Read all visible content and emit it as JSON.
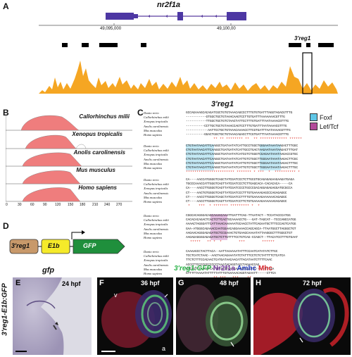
{
  "panels": {
    "A": "A",
    "B": "B",
    "C": "C",
    "D": "D",
    "E": "E",
    "F": "F",
    "G": "G",
    "H": "H"
  },
  "panelA": {
    "gene": "nr2f1a",
    "coord_left": "49,095,000",
    "coord_right": "49,100,00",
    "element_label": "3'reg1"
  },
  "panelB": {
    "species": [
      "Callorhinchus milii",
      "Xenopus tropicalis",
      "Anolis carolinensis",
      "Mus musculus",
      "Homo sapiens"
    ],
    "axis_ticks": [
      "0",
      "30",
      "60",
      "90",
      "120",
      "150",
      "180",
      "210",
      "240",
      "270"
    ]
  },
  "panelC": {
    "title": "3'reg1",
    "legend": [
      {
        "label": "Foxf",
        "color": "#5fc6e6"
      },
      {
        "label": "Lef/Tcf",
        "color": "#b24a9a"
      }
    ],
    "species": [
      "Danio rerio",
      "Callorhinchus milii",
      "Xenopus tropicalis",
      "Anolis carolinensis",
      "Mus musculus",
      "Homo sapiens"
    ],
    "blocks": [
      {
        "rows": [
          "GCCAGAAAGCACAGATCGCTGTGTAAACAGCCCTTTGTGTGATTTAGGTAGACGTTTG",
          "-----------GTGGCTGCTGTAAACAAGTCCTTGTGATTTAAAAAAACGTTTG",
          "-----------TTGGCTGCTGTCTAACTATTCCTTTGTGATTTAATAAAACGTTTG",
          "----------CCTTGCTGCTGTAAACCAGTCCTTTGTGATTTAATAAAACGTTTG",
          "------------AATTCCTGCTGTAAACAAAACCTTCGTGATTTAATAAAACGTTTG",
          "----------GGACTGGCTGCTGTAAACAGACCTTCGTGATTTAATAAAACGTTTG"
        ],
        "stars": "             ** ** ******** **  ** ************* ******"
      },
      {
        "rows": [
          "CTGTAATAACATTCAAGGCTGATAATATCATTGCCTGGCTGGGAATAAATAAGACTTTGGC",
          "CTGTAATAACATTCAAGGCTGATGATATCATTGCCTGACTAAGAATAAATAAGACTTTGAT",
          "CTGTAATAACATTCAAGGCTGATAATATCATCGTCTGGGTCGAGAATAAATAAGACCGTGC",
          "CTGTAATAACATTCAAGGCTGATAATATCATTGTCTGGCTTGGGAATAAATAAGACTTCGC",
          "CTGTAATAACATTCAAGGCTGATAATATCATTGTCTGGCTTGGGAATAAATAAGACTTTGC",
          "CTGTAATAACATTCAAGGCTGATAATATCATTGTCTGGCTTGGGAATAAATAAGACTTTGC"
        ],
        "stars": "*********************** ******* * ***  *  ********** *"
      },
      {
        "rows": [
          "CA----AACCATGGGGTCAGCTATCGATCCCTCTTGCGTGCAGAGAGAAGAAGATGAGA",
          "TGCCCAAACCATTGGGTCAGTTATCGATCCCTCTTGAGCACA-CACACACA-----CA",
          "CA----AACCTTGGGGTCAGTTATCGATCCCCTGCCCGACAGGAGAGAGGATGCGCCA",
          "CT----AACTGTGGGGTCAGTTATCGATCCCTTTGTGAAAAGAGCCCAGAGAGGC",
          "CT----AACCTTGGGGTCAGCTATCGATCCTTTTGTGAAAAGAAAAAACAGAGGC",
          "CT----AACCTTGGGGTCAGTTATCGATCCTTCTGTGAAAAGAAAAAAGAGAGGC"
        ],
        "stars": " *    ***  * ******* ********* *  * "
      },
      {
        "rows": [
          "CGGCACAGGGACAGCAAAACAAATTGATTTCAG-TTAATACT--TCCATACCCATGG",
          "CACACACAGACTCACTCTTCACTGCAAAACCTG---GAT-TAGCAT--TCCCANCCATGG",
          "AAAACTAGGGATTCATTAAACAAAAAATGCAACCTATTCAGAATGCTTTCCCAGTCATGG",
          "GAA-ATGGGCAGAAACCAATGGAACAGGAAAACCAGCAGCA-TTAATGGCTTAGGGCTGT",
          "AAGAACAGGGAGAGATGCTCCGAAACTGTGAAGCAAAATATTAAGGGCTTTGGGCTGT",
          "AAGAGAGGGGAGAGATGCTCTTGTTTTCCTGTCAG-CCAGCT--TTACATCCTTTGTGAAT"
        ],
        "stars": "  *****   ** *  *        ***        ******"
      },
      {
        "rows": [
          "CAAAAGCCTACTTACA--AATTAAAAAATATTTCCAATCATATATCTTGC",
          "TCCTCATCTAAC--AACTAACAGAAATATCTATTTCCTCTCTATTTTCTCATCA",
          "TTCTCTTTCCACAACTCATGATAACAACATTACATAATCTTTTCAAC",
          "ACCCTTCCCCGCCCCCCTAAATACAGGTACCTAGAACCAG",
          "GTGTGTTTAACATCATTTATTGTGAAGAAAGTAAAATT-----TTTAA",
          "GTTTTTAAAATATTTTTATTTGTGAAAACAGGTAGAATT-----CTTCA"
        ],
        "stars": "             ** ***   ***    **"
      }
    ]
  },
  "panelD": {
    "blocks": [
      "3'reg1",
      "E1b",
      "GFP"
    ]
  },
  "panelE": {
    "title": "gfp",
    "side_label": "3'reg1-E1b:GFP",
    "stage": "24 hpf"
  },
  "panelFGH": {
    "header": [
      {
        "text": "3'reg1:GFP",
        "color": "#2db34a"
      },
      {
        "text": "Nr2f1a",
        "color": "#7b3fa0"
      },
      {
        "text": "Amhc",
        "color": "#2a3fbf"
      },
      {
        "text": "Mhc",
        "color": "#d6232a"
      }
    ],
    "F_stage": "36 hpf",
    "G_stage": "48 hpf",
    "H_stage": "72 hpf",
    "F_labels": [
      "v",
      "a"
    ]
  }
}
